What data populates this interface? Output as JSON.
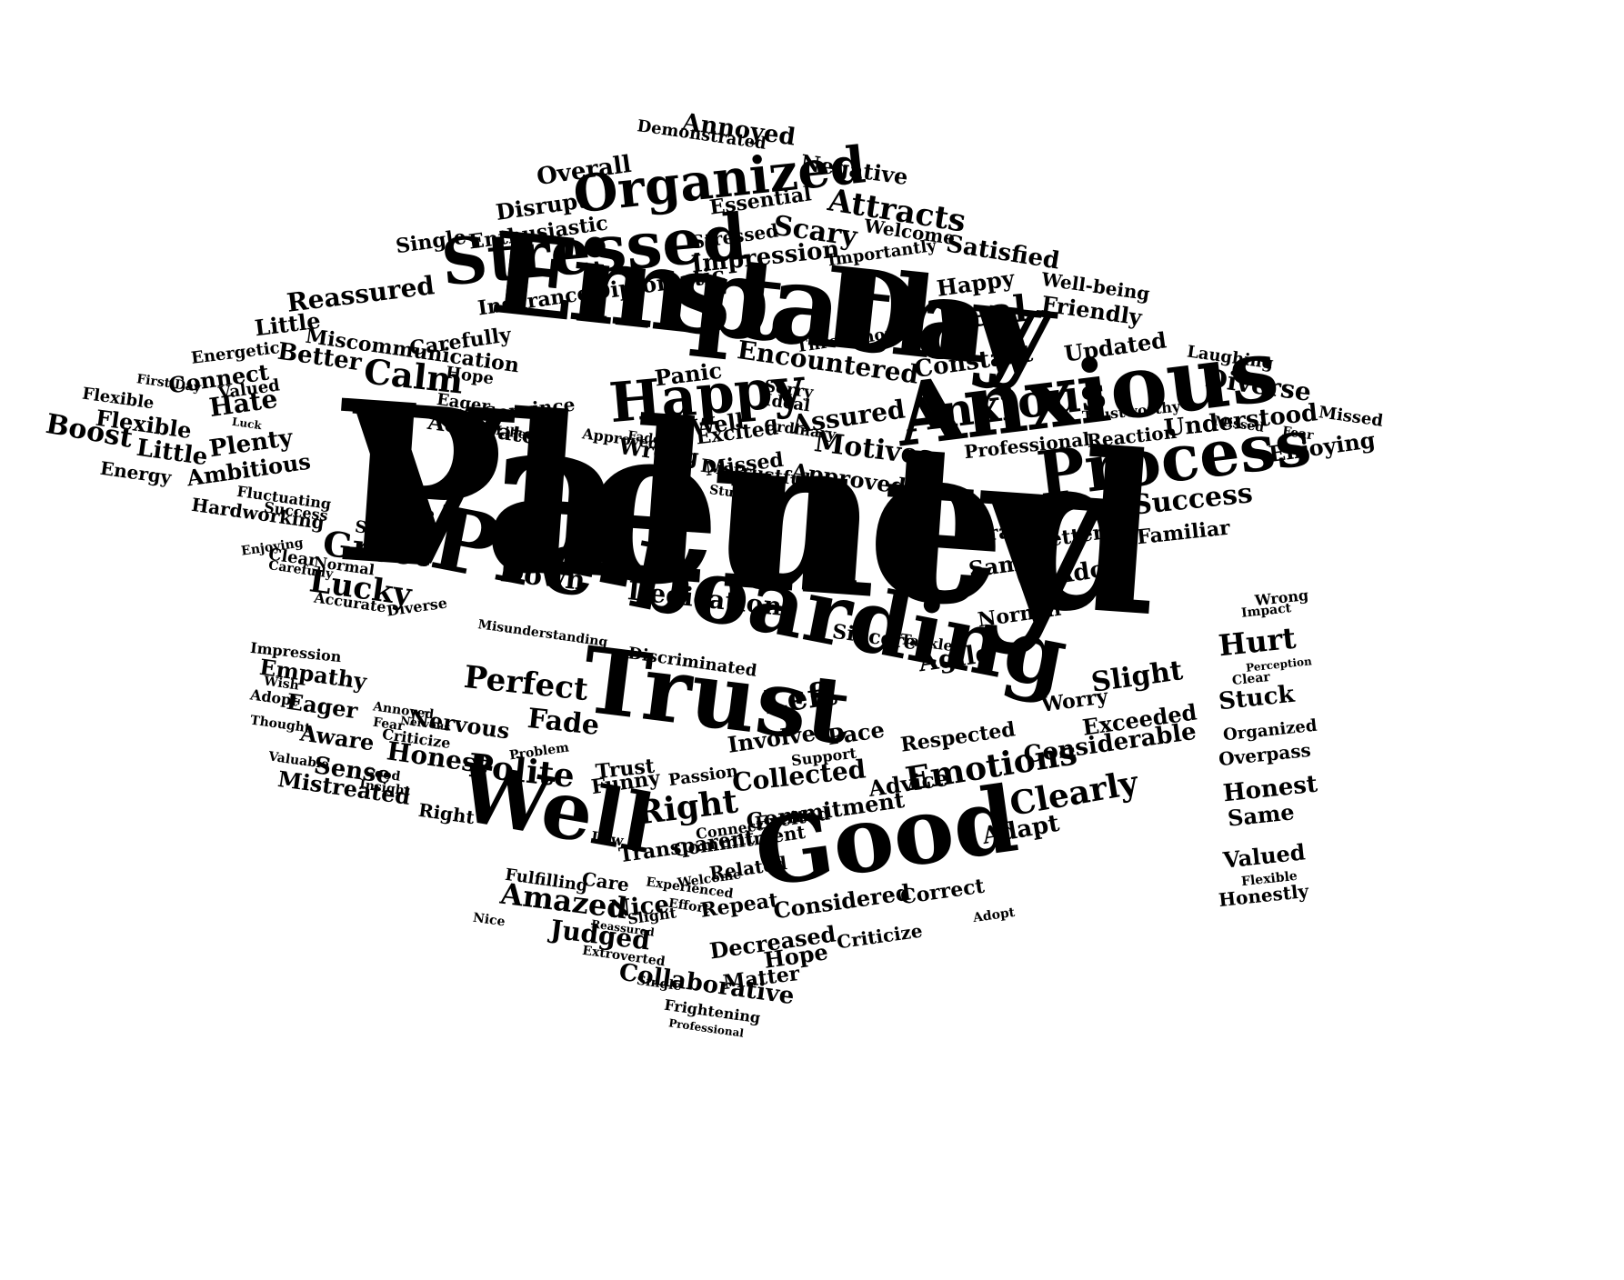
{
  "cloud": {
    "text_color": "#000000",
    "background": "#ffffff",
    "shape": "graduation-cap",
    "words": [
      "Valued",
      "First Day",
      "Pre-boarding",
      "Trust",
      "Good",
      "Well",
      "Anxious",
      "Process",
      "Stressed",
      "Organized",
      "Happy",
      "Real",
      "Calm",
      "Greet",
      "Lucky",
      "Down",
      "Dedication",
      "Left",
      "Perfect",
      "Fade",
      "Polite",
      "Honest",
      "Nervous",
      "Aware",
      "Sense",
      "Mistreated",
      "Empathy",
      "Eager",
      "Impression",
      "Right",
      "Transparent",
      "Collected",
      "Emotions",
      "Clearly",
      "Adapt",
      "Commitment",
      "Considered",
      "Amazed",
      "Judged",
      "Nice",
      "Decreased",
      "Hope",
      "Matter",
      "Collaborative",
      "Frightening",
      "Professional",
      "Slight",
      "Worry",
      "Exceeded",
      "Considerable",
      "Respected",
      "Agile",
      "Sincere",
      "Tackled",
      "Hurt",
      "Stuck",
      "Organized",
      "Overpass",
      "Honest",
      "Same",
      "Valued",
      "Flexible",
      "Honestly",
      "Wrong",
      "Impact",
      "Perception",
      "Clear",
      "Attracts",
      "Satisfied",
      "Negative",
      "Annoyed",
      "Demonstrated",
      "Overall",
      "Disrupt",
      "Enthusiastic",
      "Single",
      "Reassured",
      "Little",
      "Energetic",
      "Connect",
      "Hate",
      "Flexible",
      "Boost",
      "Little",
      "Plenty",
      "Energy",
      "Ambitious",
      "Hardworking",
      "Success",
      "Better",
      "Miscommunication",
      "Carefully",
      "Diplomatic",
      "Insurance",
      "Impression",
      "Encountered",
      "Assured",
      "Motives",
      "Approved",
      "Excited",
      "Missed",
      "Wrong",
      "Accurate",
      "Convince",
      "Hope",
      "Eager",
      "Panic",
      "Ideal",
      "Constant",
      "Updated",
      "Friendly",
      "Well-being",
      "Happy",
      "Diverse",
      "Understood",
      "Enjoying",
      "Success",
      "Familiar",
      "Adopt",
      "Same",
      "Afraid",
      "Better",
      "Normal",
      "Professional",
      "Trustworthy",
      "Reaction",
      "Scary",
      "Welcome",
      "Importantly",
      "Essential",
      "Stressed",
      "Funny",
      "Passion",
      "Support",
      "Involved",
      "Pace",
      "Discriminated",
      "Misunderstanding",
      "Care",
      "Fulfilling",
      "Repeat",
      "Correct",
      "Criticize",
      "Insight",
      "Trust",
      "Adopt",
      "Extroverted",
      "Laughing",
      "Missed",
      "Fear",
      "Missed",
      "Throughout",
      "Distrustful",
      "Stuck",
      "Anxious",
      "Fluctuating",
      "Sense",
      "Clear",
      "Normal",
      "Diverse",
      "Accurate",
      "Carefully",
      "Enjoying",
      "Flexible",
      "First Day",
      "Valued",
      "Hate",
      "Luck",
      "Liked",
      "Sorry",
      "Ordinary",
      "Approved",
      "Fade",
      "Advice",
      "Good",
      "Well",
      "Excited",
      "Commitment",
      "Connect",
      "Welcome",
      "Related",
      "Low",
      "Slight",
      "Right",
      "Reassured",
      "Nice",
      "Single",
      "Effort",
      "Experienced",
      "Problem",
      "Annoyed",
      "Nervous",
      "Fear",
      "Thought",
      "Valuable",
      "Criticize",
      "Adopt",
      "Wish",
      "Plenty",
      "Empathy"
    ]
  }
}
